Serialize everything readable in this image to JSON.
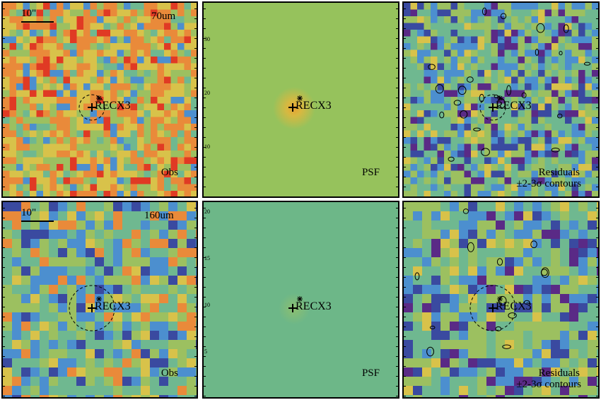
{
  "panels": [
    {
      "id": "obs-70",
      "band": "70um",
      "scale_label": "10\"",
      "source": "RECX3",
      "corner": "Obs",
      "kind": "noise",
      "cell": 9.5,
      "base": "warm"
    },
    {
      "id": "psf-70",
      "band": "",
      "scale_label": "",
      "source": "RECX3",
      "corner": "PSF",
      "kind": "psf",
      "base": "psf70"
    },
    {
      "id": "res-70",
      "band": "",
      "scale_label": "",
      "source": "RECX3",
      "corner": "Residuals",
      "corner2": "±2-3σ contours",
      "kind": "noise",
      "cell": 9.5,
      "base": "cool"
    },
    {
      "id": "obs-160",
      "band": "160um",
      "scale_label": "10\"",
      "source": "RECX3",
      "corner": "Obs",
      "kind": "noise",
      "cell": 13,
      "base": "mixed"
    },
    {
      "id": "psf-160",
      "band": "",
      "scale_label": "",
      "source": "RECX3",
      "corner": "PSF",
      "kind": "psf",
      "base": "psf160"
    },
    {
      "id": "res-160",
      "band": "",
      "scale_label": "",
      "source": "RECX3",
      "corner": "Residuals",
      "corner2": "±2-3σ contours",
      "kind": "noise",
      "cell": 13,
      "base": "cool"
    }
  ],
  "axis_ticks": {
    "psf-70": [
      "30",
      "20",
      "10"
    ],
    "psf-160": [
      "20",
      "15",
      "10",
      "5"
    ]
  },
  "colors": {
    "red": "#e03a24",
    "orange": "#e98a3a",
    "yellow": "#d8c24a",
    "green": "#9cc060",
    "teal": "#6fb890",
    "blue": "#4c8fcf",
    "navy": "#3a4aa0",
    "purple": "#5a2a86"
  }
}
